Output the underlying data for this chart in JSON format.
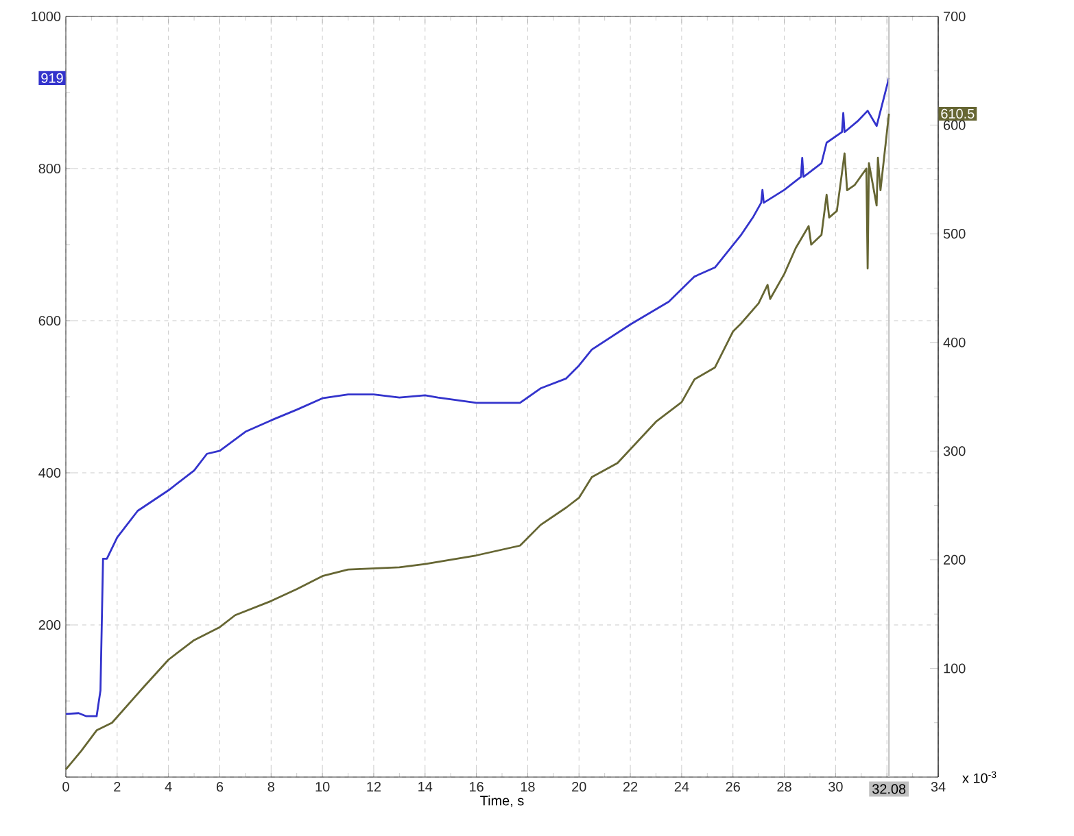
{
  "chart_data": {
    "type": "line",
    "xlabel": "Time, s",
    "xlim": [
      0,
      34
    ],
    "xticks": [
      0,
      2,
      4,
      6,
      8,
      10,
      12,
      14,
      16,
      18,
      20,
      22,
      24,
      26,
      28,
      30,
      {
        "value": 32,
        "label": null
      },
      34
    ],
    "ylim": [
      0,
      1000
    ],
    "yticks": [
      {
        "value": 0,
        "label": null
      },
      200,
      400,
      600,
      800,
      1000
    ],
    "y2lim": [
      0,
      700
    ],
    "y2ticks": [
      {
        "value": 0,
        "label": null
      },
      100,
      200,
      300,
      400,
      500,
      600,
      700
    ],
    "grid": true,
    "series": [
      {
        "color": "#3333cc",
        "x": [
          0,
          0.5,
          0.8,
          1.2,
          1.35,
          1.45,
          1.6,
          2,
          2.8,
          4,
          5,
          5.5,
          6,
          7,
          8,
          9,
          10,
          11,
          12,
          13,
          14,
          14.5,
          16,
          17.7,
          18.5,
          19.5,
          20,
          20.5,
          22,
          23.5,
          24.5,
          25.3,
          26.3,
          26.8,
          27.1,
          27.15,
          27.2,
          28,
          28.65,
          28.7,
          28.75,
          29.45,
          29.65,
          30.25,
          30.3,
          30.35,
          30.85,
          31.25,
          31.6,
          32.08
        ],
        "values": [
          83,
          84,
          80,
          80,
          114,
          287,
          287,
          315,
          350,
          377,
          403,
          425,
          429,
          454,
          469,
          483,
          498,
          503,
          503,
          499,
          502,
          499,
          492,
          492,
          511,
          524,
          541,
          562,
          595,
          625,
          658,
          670,
          712,
          737,
          755,
          772,
          755,
          772,
          789,
          814,
          789,
          807,
          834,
          848,
          873,
          848,
          862,
          876,
          856,
          919
        ]
      },
      {
        "color": "#666633",
        "axis": "y2",
        "x": [
          0,
          0.6,
          1.2,
          1.8,
          3,
          4,
          5,
          6,
          6.6,
          8,
          9,
          10,
          11,
          13,
          14,
          16,
          17.7,
          18.5,
          19.5,
          20,
          20.5,
          21.5,
          23,
          24,
          24.5,
          25.3,
          26,
          26.3,
          27,
          27.35,
          27.45,
          28,
          28.45,
          28.95,
          29.05,
          29.45,
          29.65,
          29.75,
          30.05,
          30.35,
          30.45,
          30.75,
          31.2,
          31.25,
          31.3,
          31.6,
          31.65,
          31.75,
          32.08
        ],
        "values": [
          7,
          24,
          43,
          50,
          82,
          108,
          126,
          138,
          149,
          162,
          173,
          185,
          191,
          193,
          196,
          204,
          213,
          232,
          248,
          257,
          276,
          289,
          327,
          345,
          366,
          377,
          410,
          417,
          436,
          453,
          440,
          463,
          487,
          507,
          490,
          499,
          536,
          515,
          521,
          574,
          540,
          545,
          560,
          468,
          565,
          526,
          570,
          540,
          610.5
        ]
      }
    ],
    "ref_lines": [
      {
        "axis": "x",
        "value": 32.08,
        "label": "32.08",
        "color": "#c0c0c0"
      }
    ],
    "annotations": [
      "919",
      "610.5",
      "x 10$^{-3}$"
    ]
  }
}
